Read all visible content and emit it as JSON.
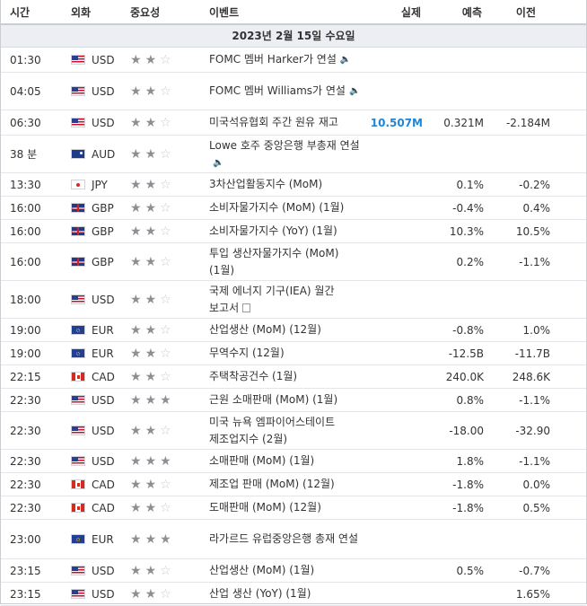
{
  "headers": {
    "time": "시간",
    "currency": "외화",
    "importance": "중요성",
    "event": "이벤트",
    "actual": "실제",
    "forecast": "예측",
    "previous": "이전"
  },
  "date_label": "2023년 2월 15일 수요일",
  "rows": [
    {
      "time": "01:30",
      "flag": "us",
      "currency": "USD",
      "stars": 2,
      "event": "FOMC 멤버 Harker가 연설",
      "icon": "speaker",
      "actual": "",
      "forecast": "",
      "previous": "",
      "h": 28
    },
    {
      "time": "04:05",
      "flag": "us",
      "currency": "USD",
      "stars": 2,
      "event": "FOMC 멤버 Williams가 연설",
      "icon": "speaker",
      "actual": "",
      "forecast": "",
      "previous": "",
      "h": 42
    },
    {
      "time": "06:30",
      "flag": "us",
      "currency": "USD",
      "stars": 2,
      "event": "미국석유협회 주간 원유 재고",
      "icon": "",
      "actual": "10.507M",
      "actual_strong": true,
      "forecast": "0.321M",
      "previous": "-2.184M",
      "h": 28
    },
    {
      "time": "38 분",
      "flag": "au",
      "currency": "AUD",
      "stars": 2,
      "event": "Lowe 호주 중앙은행 부총재 연설",
      "icon": "speaker",
      "actual": "",
      "forecast": "",
      "previous": "",
      "h": 42
    },
    {
      "time": "13:30",
      "flag": "jp",
      "currency": "JPY",
      "stars": 2,
      "event": "3차산업활동지수 (MoM)",
      "icon": "",
      "actual": "",
      "forecast": "0.1%",
      "previous": "-0.2%",
      "h": 26
    },
    {
      "time": "16:00",
      "flag": "gb",
      "currency": "GBP",
      "stars": 2,
      "event": "소비자물가지수 (MoM) (1월)",
      "icon": "",
      "actual": "",
      "forecast": "-0.4%",
      "previous": "0.4%",
      "h": 26
    },
    {
      "time": "16:00",
      "flag": "gb",
      "currency": "GBP",
      "stars": 2,
      "event": "소비자물가지수 (YoY) (1월)",
      "icon": "",
      "actual": "",
      "forecast": "10.3%",
      "previous": "10.5%",
      "h": 26
    },
    {
      "time": "16:00",
      "flag": "gb",
      "currency": "GBP",
      "stars": 2,
      "event": "투입 생산자물가지수 (MoM) (1월)",
      "icon": "",
      "actual": "",
      "forecast": "0.2%",
      "previous": "-1.1%",
      "h": 42
    },
    {
      "time": "18:00",
      "flag": "us",
      "currency": "USD",
      "stars": 2,
      "event": "국제 에너지 기구(IEA) 월간 보고서",
      "icon": "doc",
      "actual": "",
      "forecast": "",
      "previous": "",
      "h": 42
    },
    {
      "time": "19:00",
      "flag": "eu",
      "currency": "EUR",
      "stars": 2,
      "event": "산업생산 (MoM) (12월)",
      "icon": "",
      "actual": "",
      "forecast": "-0.8%",
      "previous": "1.0%",
      "h": 26
    },
    {
      "time": "19:00",
      "flag": "eu",
      "currency": "EUR",
      "stars": 2,
      "event": "무역수지 (12월)",
      "icon": "",
      "actual": "",
      "forecast": "-12.5B",
      "previous": "-11.7B",
      "h": 26
    },
    {
      "time": "22:15",
      "flag": "ca",
      "currency": "CAD",
      "stars": 2,
      "event": "주택착공건수 (1월)",
      "icon": "",
      "actual": "",
      "forecast": "240.0K",
      "previous": "248.6K",
      "h": 26
    },
    {
      "time": "22:30",
      "flag": "us",
      "currency": "USD",
      "stars": 3,
      "event": "근원 소매판매 (MoM) (1월)",
      "icon": "",
      "actual": "",
      "forecast": "0.8%",
      "previous": "-1.1%",
      "h": 26
    },
    {
      "time": "22:30",
      "flag": "us",
      "currency": "USD",
      "stars": 2,
      "event": "미국 뉴욕 엠파이어스테이트 제조업지수 (2월)",
      "icon": "",
      "actual": "",
      "forecast": "-18.00",
      "previous": "-32.90",
      "h": 42
    },
    {
      "time": "22:30",
      "flag": "us",
      "currency": "USD",
      "stars": 3,
      "event": "소매판매 (MoM) (1월)",
      "icon": "",
      "actual": "",
      "forecast": "1.8%",
      "previous": "-1.1%",
      "h": 26
    },
    {
      "time": "22:30",
      "flag": "ca",
      "currency": "CAD",
      "stars": 2,
      "event": "제조업 판매 (MoM) (12월)",
      "icon": "",
      "actual": "",
      "forecast": "-1.8%",
      "previous": "0.0%",
      "h": 26
    },
    {
      "time": "22:30",
      "flag": "ca",
      "currency": "CAD",
      "stars": 2,
      "event": "도매판매 (MoM) (12월)",
      "icon": "",
      "actual": "",
      "forecast": "-1.8%",
      "previous": "0.5%",
      "h": 26
    },
    {
      "time": "23:00",
      "flag": "eu",
      "currency": "EUR",
      "stars": 3,
      "event": "라가르드 유럽중앙은행 총재 연설",
      "icon": "",
      "actual": "",
      "forecast": "",
      "previous": "",
      "h": 44
    },
    {
      "time": "23:15",
      "flag": "us",
      "currency": "USD",
      "stars": 2,
      "event": "산업생산 (MoM) (1월)",
      "icon": "",
      "actual": "",
      "forecast": "0.5%",
      "previous": "-0.7%",
      "h": 26
    },
    {
      "time": "23:15",
      "flag": "us",
      "currency": "USD",
      "stars": 2,
      "event": "산업 생산 (YoY) (1월)",
      "icon": "",
      "actual": "",
      "forecast": "",
      "previous": "1.65%",
      "h": 26
    }
  ]
}
